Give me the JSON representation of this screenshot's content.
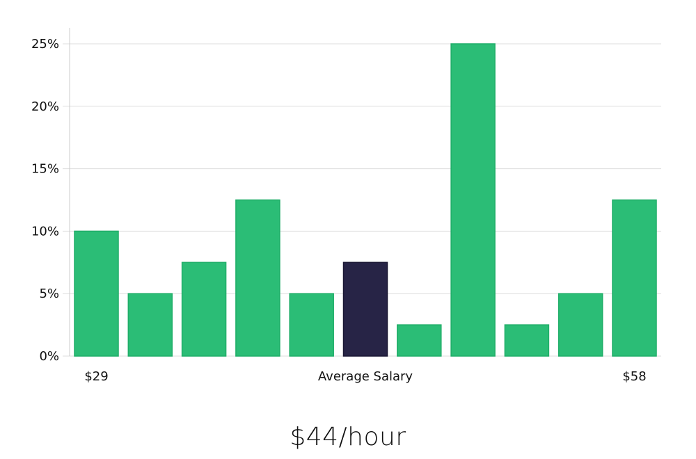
{
  "chart_data": {
    "type": "bar",
    "values": [
      10,
      5,
      7.5,
      12.5,
      5,
      7.5,
      2.5,
      25,
      2.5,
      5,
      12.5
    ],
    "highlight_index": 5,
    "ylim": [
      0,
      25
    ],
    "yticks": [
      0,
      5,
      10,
      15,
      20,
      25
    ],
    "ytick_format": "%",
    "grid": true,
    "x_labels": {
      "left": "$29",
      "center": "Average Salary",
      "right": "$58"
    },
    "colors": {
      "bar": "#2bbd76",
      "bar_border": "#1fae68",
      "highlight": "#272446",
      "grid": "#dddddd",
      "axis": "#cccccc"
    }
  },
  "headline": "$44/hour"
}
